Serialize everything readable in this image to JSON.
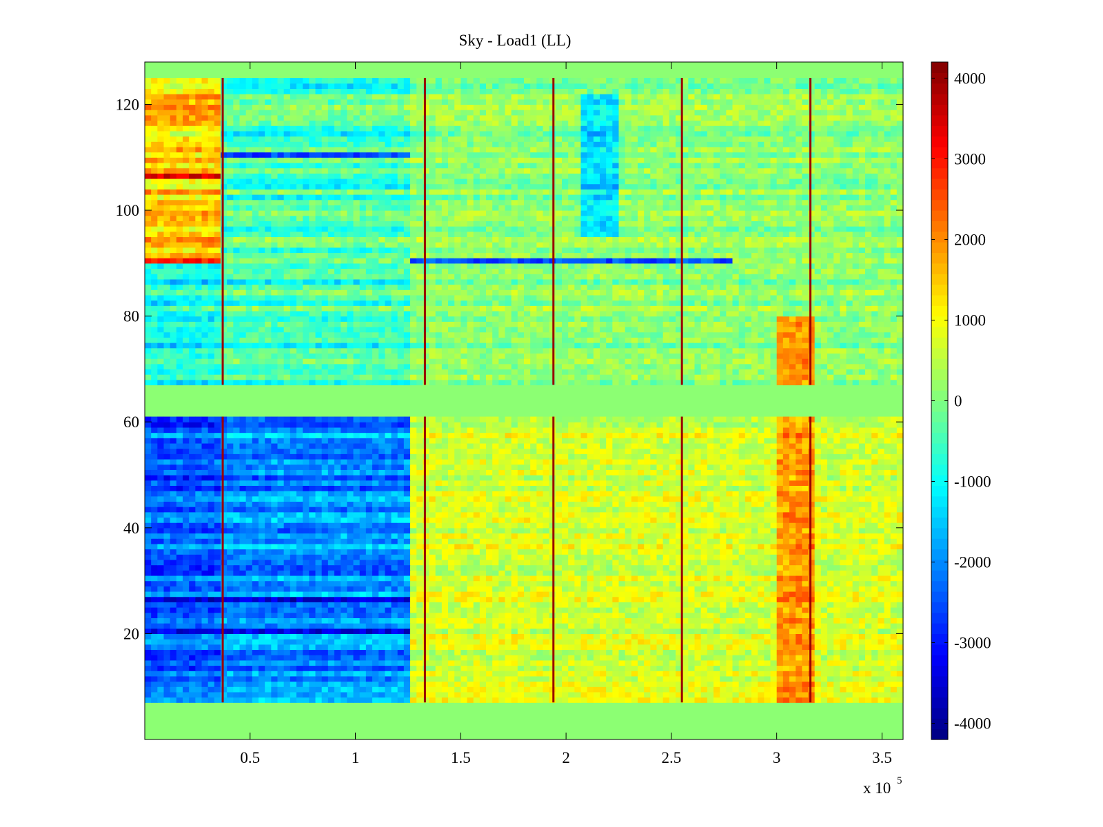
{
  "chart_data": {
    "type": "heatmap",
    "title": "Sky - Load1 (LL)",
    "xlabel": "",
    "ylabel": "",
    "x_multiplier_label": "x 10",
    "x_multiplier_exponent": "5",
    "xlim": [
      0,
      3.6
    ],
    "ylim": [
      0,
      128
    ],
    "x_ticks": [
      0.5,
      1,
      1.5,
      2,
      2.5,
      3,
      3.5
    ],
    "x_tick_labels": [
      "0.5",
      "1",
      "1.5",
      "2",
      "2.5",
      "3",
      "3.5"
    ],
    "y_ticks": [
      20,
      40,
      60,
      80,
      100,
      120
    ],
    "y_tick_labels": [
      "20",
      "40",
      "60",
      "80",
      "100",
      "120"
    ],
    "colormap": "jet",
    "color_range": [
      -4200,
      4200
    ],
    "colorbar_ticks": [
      4000,
      3000,
      2000,
      1000,
      0,
      -1000,
      -2000,
      -3000,
      -4000
    ],
    "colorbar_tick_labels": [
      "4000",
      "3000",
      "2000",
      "1000",
      "0",
      "-1000",
      "-2000",
      "-3000",
      "-4000"
    ],
    "empty_value": 0,
    "empty_row_ranges": [
      [
        0,
        7
      ],
      [
        61,
        67
      ],
      [
        125,
        128
      ]
    ],
    "x_segment_bounds": [
      0.37,
      1.26
    ],
    "vertical_spike_lines_x": [
      0.37,
      1.33,
      1.94,
      2.55,
      3.16
    ],
    "vertical_spike_value": 4000,
    "regions": [
      {
        "name": "segment-1",
        "x_range": [
          0,
          0.37
        ],
        "y_range": [
          7,
          61
        ],
        "mean_value": -2400
      },
      {
        "name": "segment-1",
        "x_range": [
          0,
          0.37
        ],
        "y_range": [
          67,
          90
        ],
        "mean_value": -900
      },
      {
        "name": "segment-1",
        "x_range": [
          0,
          0.37
        ],
        "y_range": [
          90,
          125
        ],
        "mean_value": 1400
      },
      {
        "name": "segment-2",
        "x_range": [
          0.37,
          1.26
        ],
        "y_range": [
          7,
          61
        ],
        "mean_value": -2000
      },
      {
        "name": "segment-2",
        "x_range": [
          0.37,
          1.26
        ],
        "y_range": [
          67,
          125
        ],
        "mean_value": -500
      },
      {
        "name": "segment-3",
        "x_range": [
          1.26,
          3.6
        ],
        "y_range": [
          7,
          61
        ],
        "mean_value": 700
      },
      {
        "name": "segment-3",
        "x_range": [
          1.26,
          3.6
        ],
        "y_range": [
          67,
          125
        ],
        "mean_value": 100
      },
      {
        "name": "hot-band",
        "x_range": [
          3.0,
          3.18
        ],
        "y_range": [
          7,
          80
        ],
        "mean_value": 1900
      },
      {
        "name": "cold-patch",
        "x_range": [
          2.08,
          2.25
        ],
        "y_range": [
          95,
          122
        ],
        "mean_value": -1300
      }
    ],
    "row_features": [
      {
        "y": 90,
        "x_range": [
          0,
          0.37
        ],
        "value": 3000
      },
      {
        "y": 90,
        "x_range": [
          1.26,
          2.8
        ],
        "value": -2500
      },
      {
        "y": 110,
        "x_range": [
          0.37,
          1.26
        ],
        "value": -2600
      },
      {
        "y": 26,
        "x_range": [
          0,
          1.26
        ],
        "value": -3600
      },
      {
        "y": 20,
        "x_range": [
          0,
          1.26
        ],
        "value": -3400
      },
      {
        "y": 106,
        "x_range": [
          0,
          0.37
        ],
        "value": 3400
      }
    ]
  }
}
